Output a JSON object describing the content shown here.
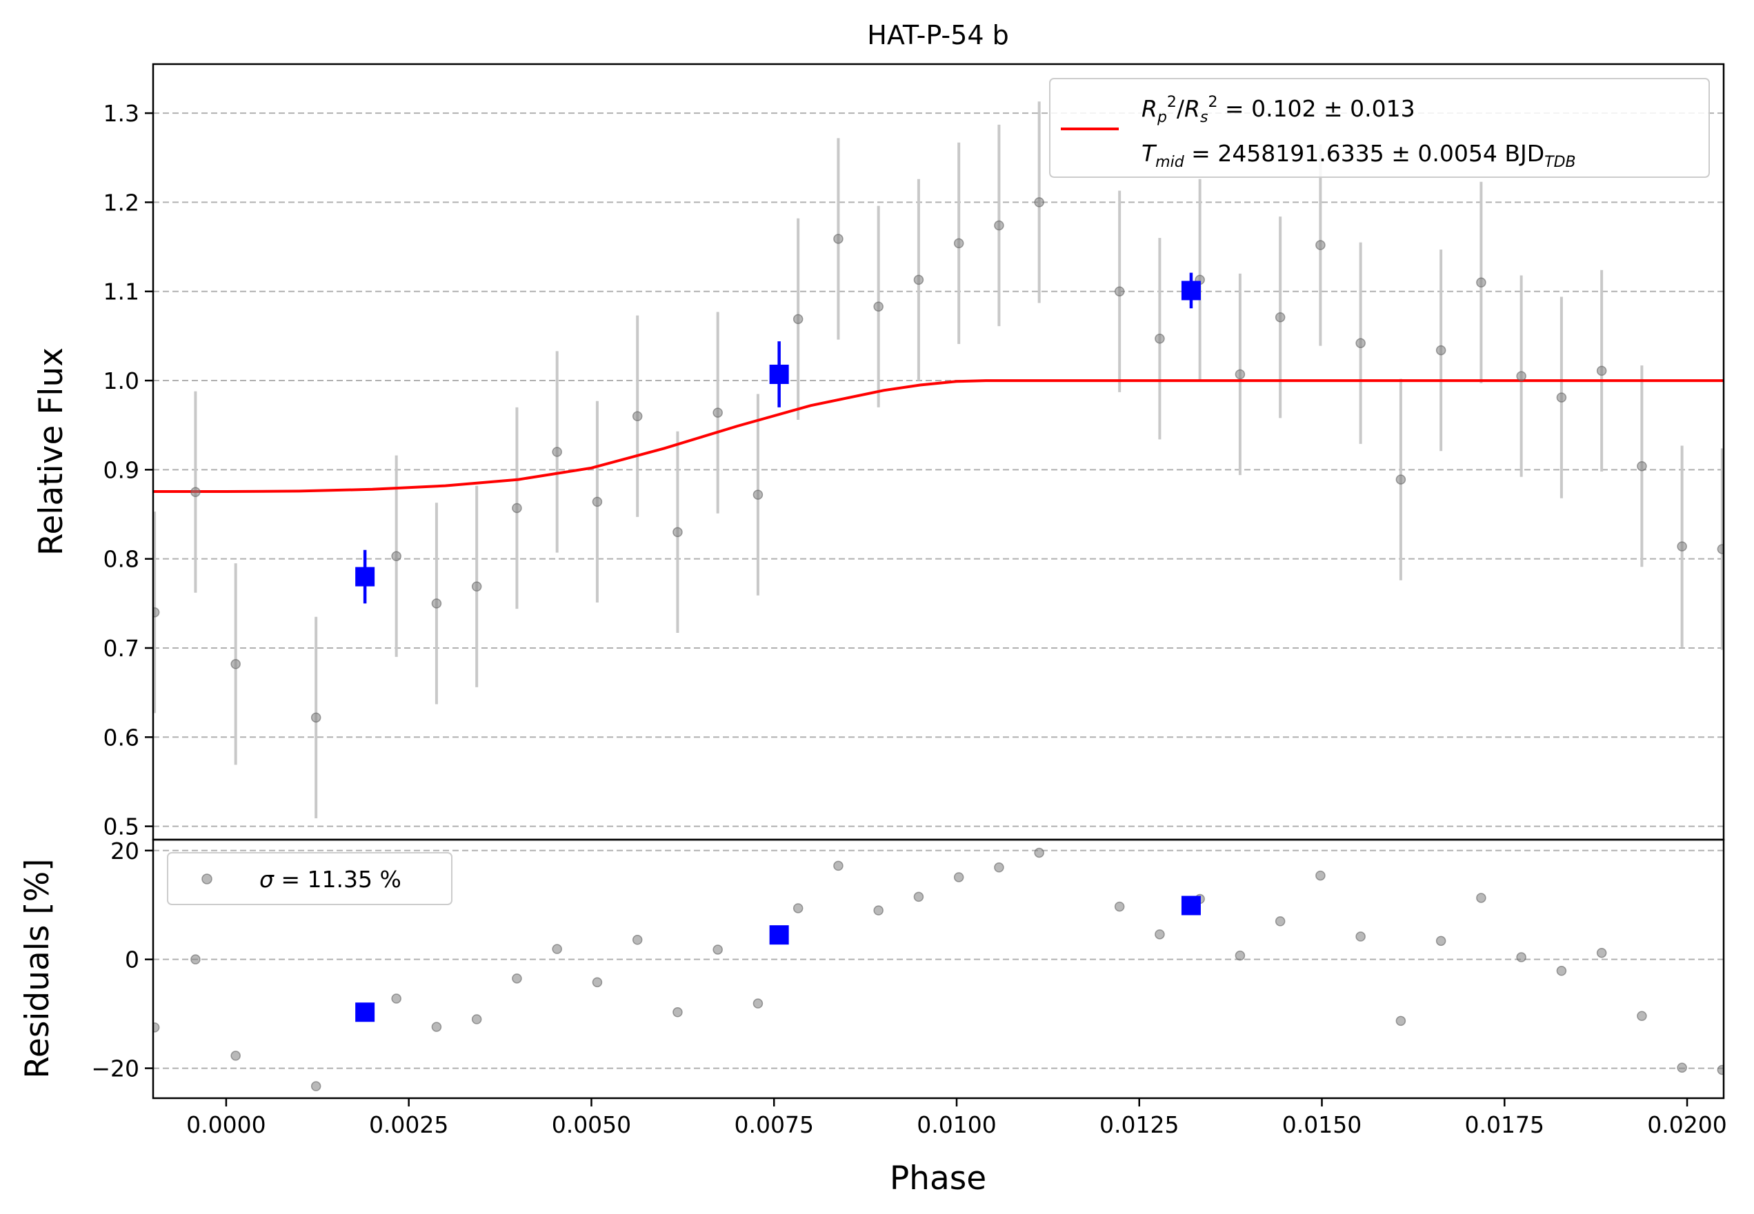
{
  "chart_data": {
    "type": "scatter",
    "title": "HAT-P-54 b",
    "xlabel": "Phase",
    "xlim": [
      -0.001,
      0.0205
    ],
    "x_ticks": [
      0.0,
      0.0025,
      0.005,
      0.0075,
      0.01,
      0.0125,
      0.015,
      0.0175,
      0.02
    ],
    "x_tick_labels": [
      "0.0000",
      "0.0025",
      "0.0050",
      "0.0075",
      "0.0100",
      "0.0125",
      "0.0150",
      "0.0175",
      "0.0200"
    ],
    "grid": "horizontal dashed",
    "panels": [
      {
        "name": "flux",
        "ylabel": "Relative Flux",
        "ylim": [
          0.485,
          1.355
        ],
        "y_ticks": [
          0.5,
          0.6,
          0.7,
          0.8,
          0.9,
          1.0,
          1.1,
          1.2,
          1.3
        ],
        "y_tick_labels": [
          "0.5",
          "0.6",
          "0.7",
          "0.8",
          "0.9",
          "1.0",
          "1.1",
          "1.2",
          "1.3"
        ],
        "legend": {
          "location": "top-right",
          "line1": "R_p^2/R_s^2 = 0.102 ± 0.013",
          "line2": "T_mid = 2458191.6335 ± 0.0054 BJD_TDB"
        },
        "model": {
          "color": "#ff0000",
          "x": [
            -0.001,
            0.0,
            0.001,
            0.002,
            0.003,
            0.004,
            0.005,
            0.006,
            0.007,
            0.008,
            0.009,
            0.0095,
            0.01,
            0.0104,
            0.011,
            0.012,
            0.014,
            0.016,
            0.018,
            0.0205
          ],
          "y": [
            0.8755,
            0.8755,
            0.876,
            0.878,
            0.882,
            0.889,
            0.902,
            0.924,
            0.949,
            0.972,
            0.989,
            0.995,
            0.999,
            1.0,
            1.0,
            1.0,
            1.0,
            1.0,
            1.0,
            1.0
          ]
        },
        "raw": {
          "color": "#808080",
          "x": [
            -0.00098,
            -0.00042,
            0.00013,
            0.00123,
            0.00233,
            0.00288,
            0.00343,
            0.00398,
            0.00453,
            0.00508,
            0.00563,
            0.00618,
            0.00673,
            0.00728,
            0.00783,
            0.00838,
            0.00893,
            0.00948,
            0.01003,
            0.01058,
            0.01113,
            0.01223,
            0.01278,
            0.01333,
            0.01388,
            0.01443,
            0.01498,
            0.01553,
            0.01608,
            0.01663,
            0.01718,
            0.01773,
            0.01828,
            0.01883,
            0.01938,
            0.01993,
            0.02048
          ],
          "y": [
            0.74,
            0.875,
            0.682,
            0.622,
            0.803,
            0.75,
            0.769,
            0.857,
            0.92,
            0.864,
            0.96,
            0.83,
            0.964,
            0.872,
            1.069,
            1.159,
            1.083,
            1.113,
            1.154,
            1.174,
            1.2,
            1.1,
            1.047,
            1.113,
            1.007,
            1.071,
            1.152,
            1.042,
            0.889,
            1.034,
            1.11,
            1.005,
            0.981,
            1.011,
            0.904,
            0.814,
            0.811
          ],
          "yerr": [
            0.113,
            0.113,
            0.113,
            0.113,
            0.113,
            0.113,
            0.113,
            0.113,
            0.113,
            0.113,
            0.113,
            0.113,
            0.113,
            0.113,
            0.113,
            0.113,
            0.113,
            0.113,
            0.113,
            0.113,
            0.113,
            0.113,
            0.113,
            0.113,
            0.113,
            0.113,
            0.113,
            0.113,
            0.113,
            0.113,
            0.113,
            0.113,
            0.113,
            0.113,
            0.113,
            0.113,
            0.113
          ]
        },
        "binned": {
          "color": "#0000ff",
          "x": [
            0.0019,
            0.00757,
            0.01321
          ],
          "y": [
            0.78,
            1.007,
            1.101
          ],
          "yerr": [
            0.03,
            0.037,
            0.02
          ]
        }
      },
      {
        "name": "residuals",
        "ylabel": "Residuals [%]",
        "ylim": [
          -25.5,
          22.0
        ],
        "y_ticks": [
          -20,
          0,
          20
        ],
        "y_tick_labels": [
          "−20",
          "0",
          "20"
        ],
        "legend": {
          "location": "top-left",
          "text": "σ = 11.35 %"
        },
        "raw": {
          "color": "#808080",
          "x": [
            -0.00098,
            -0.00042,
            0.00013,
            0.00123,
            0.00233,
            0.00288,
            0.00343,
            0.00398,
            0.00453,
            0.00508,
            0.00563,
            0.00618,
            0.00673,
            0.00728,
            0.00783,
            0.00838,
            0.00893,
            0.00948,
            0.01003,
            0.01058,
            0.01113,
            0.01223,
            0.01278,
            0.01333,
            0.01388,
            0.01443,
            0.01498,
            0.01553,
            0.01608,
            0.01663,
            0.01718,
            0.01773,
            0.01828,
            0.01883,
            0.01938,
            0.01993,
            0.02048
          ],
          "y": [
            -12.5,
            0.0,
            -17.7,
            -23.3,
            -7.2,
            -12.4,
            -11.0,
            -3.5,
            1.9,
            -4.2,
            3.6,
            -9.7,
            1.8,
            -8.1,
            9.4,
            17.2,
            9.0,
            11.5,
            15.1,
            16.9,
            19.6,
            9.7,
            4.6,
            11.1,
            0.7,
            7.0,
            15.4,
            4.2,
            -11.3,
            3.4,
            11.3,
            0.4,
            -2.1,
            1.2,
            -10.4,
            -19.9,
            -20.3
          ]
        },
        "binned": {
          "color": "#0000ff",
          "x": [
            0.0019,
            0.00757,
            0.01321
          ],
          "y": [
            -9.7,
            4.5,
            9.9
          ]
        }
      }
    ]
  }
}
